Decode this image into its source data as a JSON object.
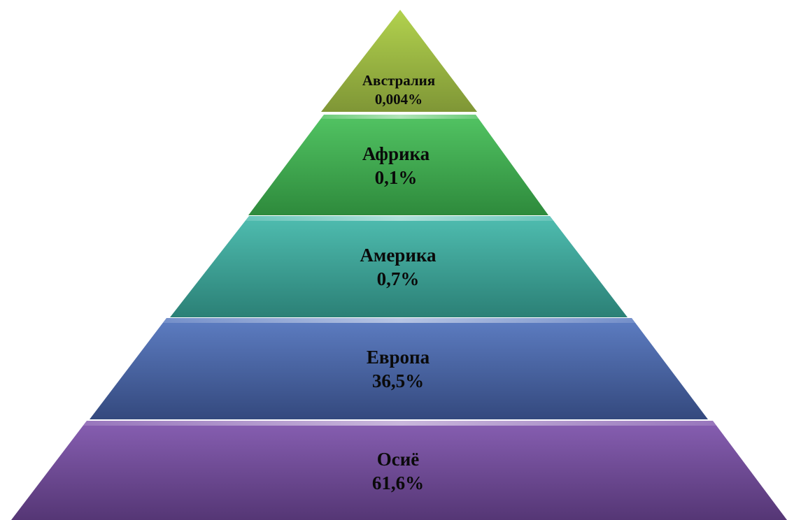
{
  "tiers": [
    {
      "name": "Австралия",
      "value": "0,004%",
      "color": "#9fbe4a"
    },
    {
      "name": "Африка",
      "value": "0,1%",
      "color": "#3fae52"
    },
    {
      "name": "Америка",
      "value": "0,7%",
      "color": "#3aa59a"
    },
    {
      "name": "Европа",
      "value": "36,5%",
      "color": "#4a66a8"
    },
    {
      "name": "Осиё",
      "value": "61,6%",
      "color": "#6e4a96"
    }
  ]
}
